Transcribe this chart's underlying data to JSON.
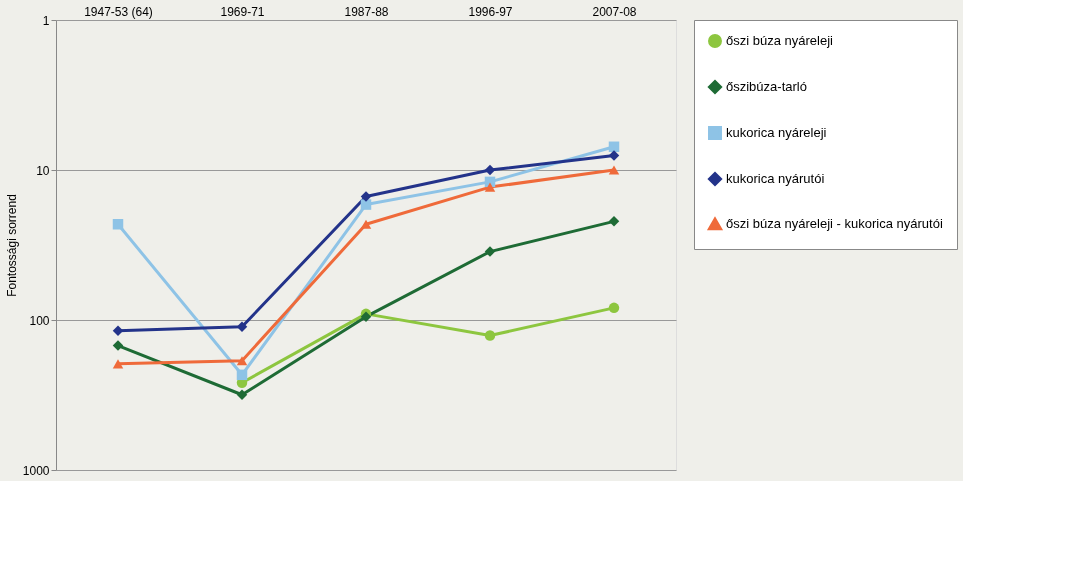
{
  "chart_data": {
    "type": "line",
    "ylabel": "Fontossági sorrend",
    "categories": [
      "1947-53 (64)",
      "1969-71",
      "1987-88",
      "1996-97",
      "2007-08"
    ],
    "log": "y",
    "ylim": [
      1000,
      1
    ],
    "yticks": [
      1,
      10,
      100,
      1000
    ],
    "grid": "y",
    "legend": "right",
    "series": [
      {
        "name": "őszi búza nyáreleji",
        "color": "#8dc63f",
        "marker": "circle",
        "values": [
          null,
          262,
          91,
          127,
          83
        ]
      },
      {
        "name": "őszibúza-tarló",
        "color": "#1e6b35",
        "marker": "diamond",
        "values": [
          148,
          315,
          95,
          35,
          22
        ]
      },
      {
        "name": "kukorica nyáreleji",
        "color": "#8ec3e6",
        "marker": "square",
        "values": [
          23,
          232,
          17,
          12,
          7
        ]
      },
      {
        "name": "kukorica nyárutói",
        "color": "#23338a",
        "marker": "diamond",
        "values": [
          118,
          111,
          15,
          10,
          8
        ]
      },
      {
        "name": "őszi búza nyáreleji - kukorica nyárutói",
        "color": "#ef6a3a",
        "marker": "triangle",
        "values": [
          196,
          187,
          23,
          13,
          10
        ]
      }
    ]
  }
}
